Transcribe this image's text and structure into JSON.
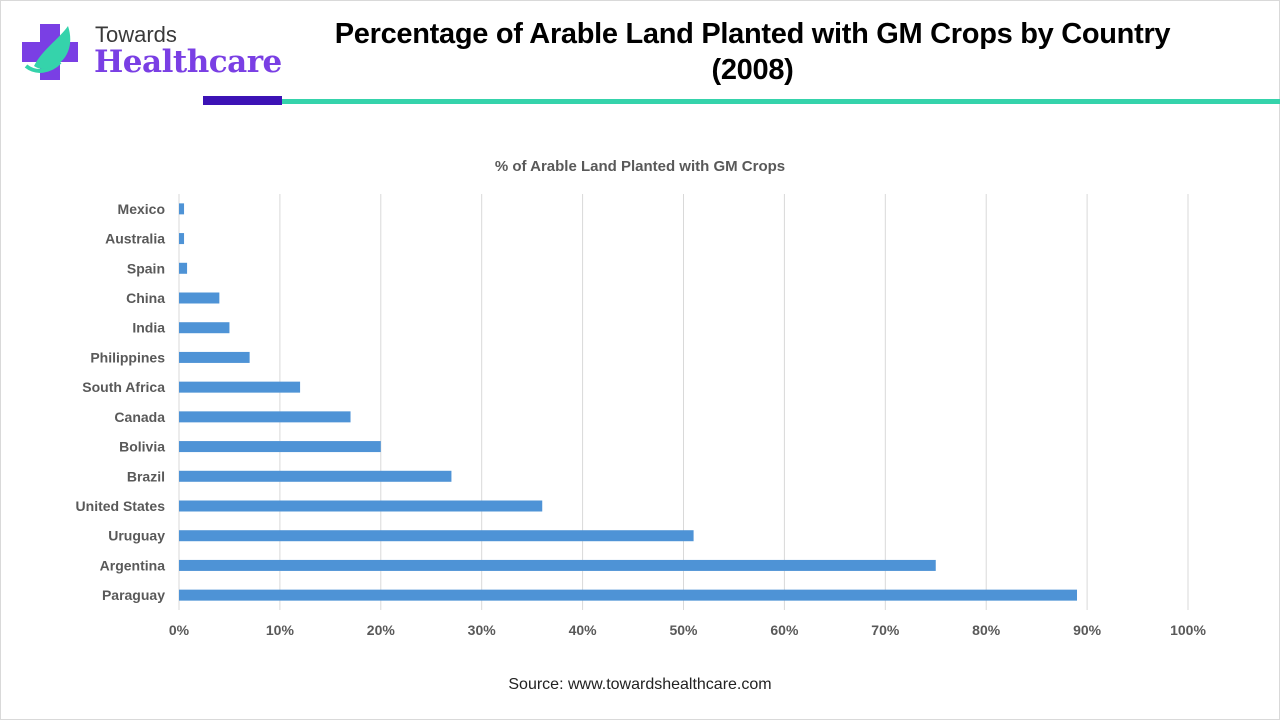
{
  "brand": {
    "line1": "Towards",
    "line2": "Healthcare",
    "colors": {
      "purple": "#7a3fe4",
      "teal": "#35d3ab",
      "dark": "#3c12b5"
    }
  },
  "header": {
    "title": "Percentage of Arable Land Planted with GM Crops by Country (2008)"
  },
  "footer": {
    "source": "Source: www.towardshealthcare.com"
  },
  "chart_data": {
    "type": "bar",
    "orientation": "horizontal",
    "title": "% of Arable Land Planted with GM Crops",
    "xlabel": "",
    "ylabel": "",
    "categories": [
      "Mexico",
      "Australia",
      "Spain",
      "China",
      "India",
      "Philippines",
      "South Africa",
      "Canada",
      "Bolivia",
      "Brazil",
      "United States",
      "Uruguay",
      "Argentina",
      "Paraguay"
    ],
    "values": [
      0.5,
      0.5,
      0.8,
      4,
      5,
      7,
      12,
      17,
      20,
      27,
      36,
      51,
      75,
      89
    ],
    "value_unit": "%",
    "xlim": [
      0,
      100
    ],
    "x_ticks": [
      "0%",
      "10%",
      "20%",
      "30%",
      "40%",
      "50%",
      "60%",
      "70%",
      "80%",
      "90%",
      "100%"
    ],
    "grid": true,
    "legend": "none",
    "bar_color": "#4e93d6",
    "grid_color": "#d9d9d9"
  }
}
